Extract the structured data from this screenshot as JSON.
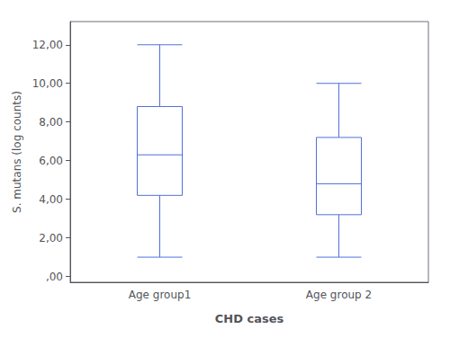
{
  "chart_data": {
    "type": "box",
    "categories": [
      "Age group1",
      "Age group 2"
    ],
    "values": [
      [
        1.0,
        4.2,
        6.3,
        8.8,
        12.0
      ],
      [
        1.0,
        3.2,
        4.8,
        7.2,
        10.0
      ]
    ],
    "xlabel": "CHD cases",
    "ylabel": "S. mutans (log counts)",
    "ylim": [
      -0.3,
      13.2
    ],
    "yticks": [
      {
        "value": 0.0,
        "label": ",00"
      },
      {
        "value": 2.0,
        "label": "2,00"
      },
      {
        "value": 4.0,
        "label": "4,00"
      },
      {
        "value": 6.0,
        "label": "6,00"
      },
      {
        "value": 8.0,
        "label": "8,00"
      },
      {
        "value": 10.0,
        "label": "10,00"
      },
      {
        "value": 12.0,
        "label": "12,00"
      }
    ],
    "grid": false
  }
}
